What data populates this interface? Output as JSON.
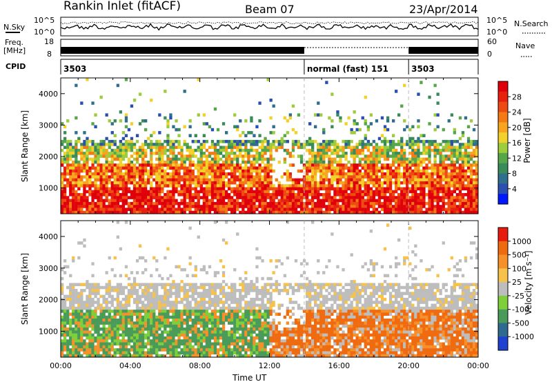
{
  "header": {
    "station": "Rankin Inlet (fitACF)",
    "beam": "Beam 07",
    "date": "23/Apr/2014"
  },
  "noise_panel": {
    "left_label": "N.Sky",
    "right_label": "N.Search",
    "left_ticks": [
      "10^5",
      "10^0"
    ],
    "right_ticks": [
      "10^5",
      "10^0"
    ]
  },
  "freq_panel": {
    "left_label_line1": "Freq.",
    "left_label_line2": "[MHz]",
    "right_label": "Nave",
    "left_ticks": [
      "18",
      "8"
    ],
    "right_ticks": [
      "60",
      "0"
    ]
  },
  "cpid_panel": {
    "label": "CPID",
    "segments": [
      {
        "label": "3503",
        "start_hour": 0,
        "end_hour": 14
      },
      {
        "label": "normal (fast) 151",
        "start_hour": 14,
        "end_hour": 20
      },
      {
        "label": "3503",
        "start_hour": 20,
        "end_hour": 24
      }
    ]
  },
  "chart_data": [
    {
      "type": "heatmap",
      "name": "power",
      "ylabel": "Slant Range [km]",
      "xlabel": "",
      "y_ticks": [
        "1000",
        "2000",
        "3000",
        "4000"
      ],
      "ylim": [
        180,
        4500
      ],
      "x_hours": [
        0,
        24
      ],
      "colorbar_label": "Power [dB]",
      "colorbar_ticks": [
        "4",
        "8",
        "12",
        "16",
        "20",
        "24",
        "28"
      ],
      "colorbar_range": [
        0,
        32
      ],
      "colorscale": [
        "#0018ff",
        "#2a4fb0",
        "#2f6e8c",
        "#3a8b5a",
        "#58a64a",
        "#9dcc3d",
        "#f2d12a",
        "#f7a51e",
        "#f47a16",
        "#ee4b12",
        "#e8210f",
        "#e0000c"
      ]
    },
    {
      "type": "heatmap",
      "name": "velocity",
      "ylabel": "Slant Range [km]",
      "xlabel": "Time UT",
      "y_ticks": [
        "1000",
        "2000",
        "3000",
        "4000"
      ],
      "ylim": [
        180,
        4500
      ],
      "x_hours": [
        0,
        24
      ],
      "x_ticks": [
        "00:00",
        "04:00",
        "08:00",
        "12:00",
        "16:00",
        "20:00",
        "00:00"
      ],
      "colorbar_label": "Velocity [m s⁻¹]",
      "colorbar_ticks": [
        "1000",
        "500",
        "100",
        "25",
        "-25",
        "-100",
        "-500",
        "-1000"
      ],
      "colorscale": [
        "#2040d0",
        "#2f6a90",
        "#4a9a5a",
        "#7fcf3a",
        "#bdbdbd",
        "#f7c24a",
        "#f5902a",
        "#f06a10",
        "#e81c0c"
      ]
    }
  ]
}
